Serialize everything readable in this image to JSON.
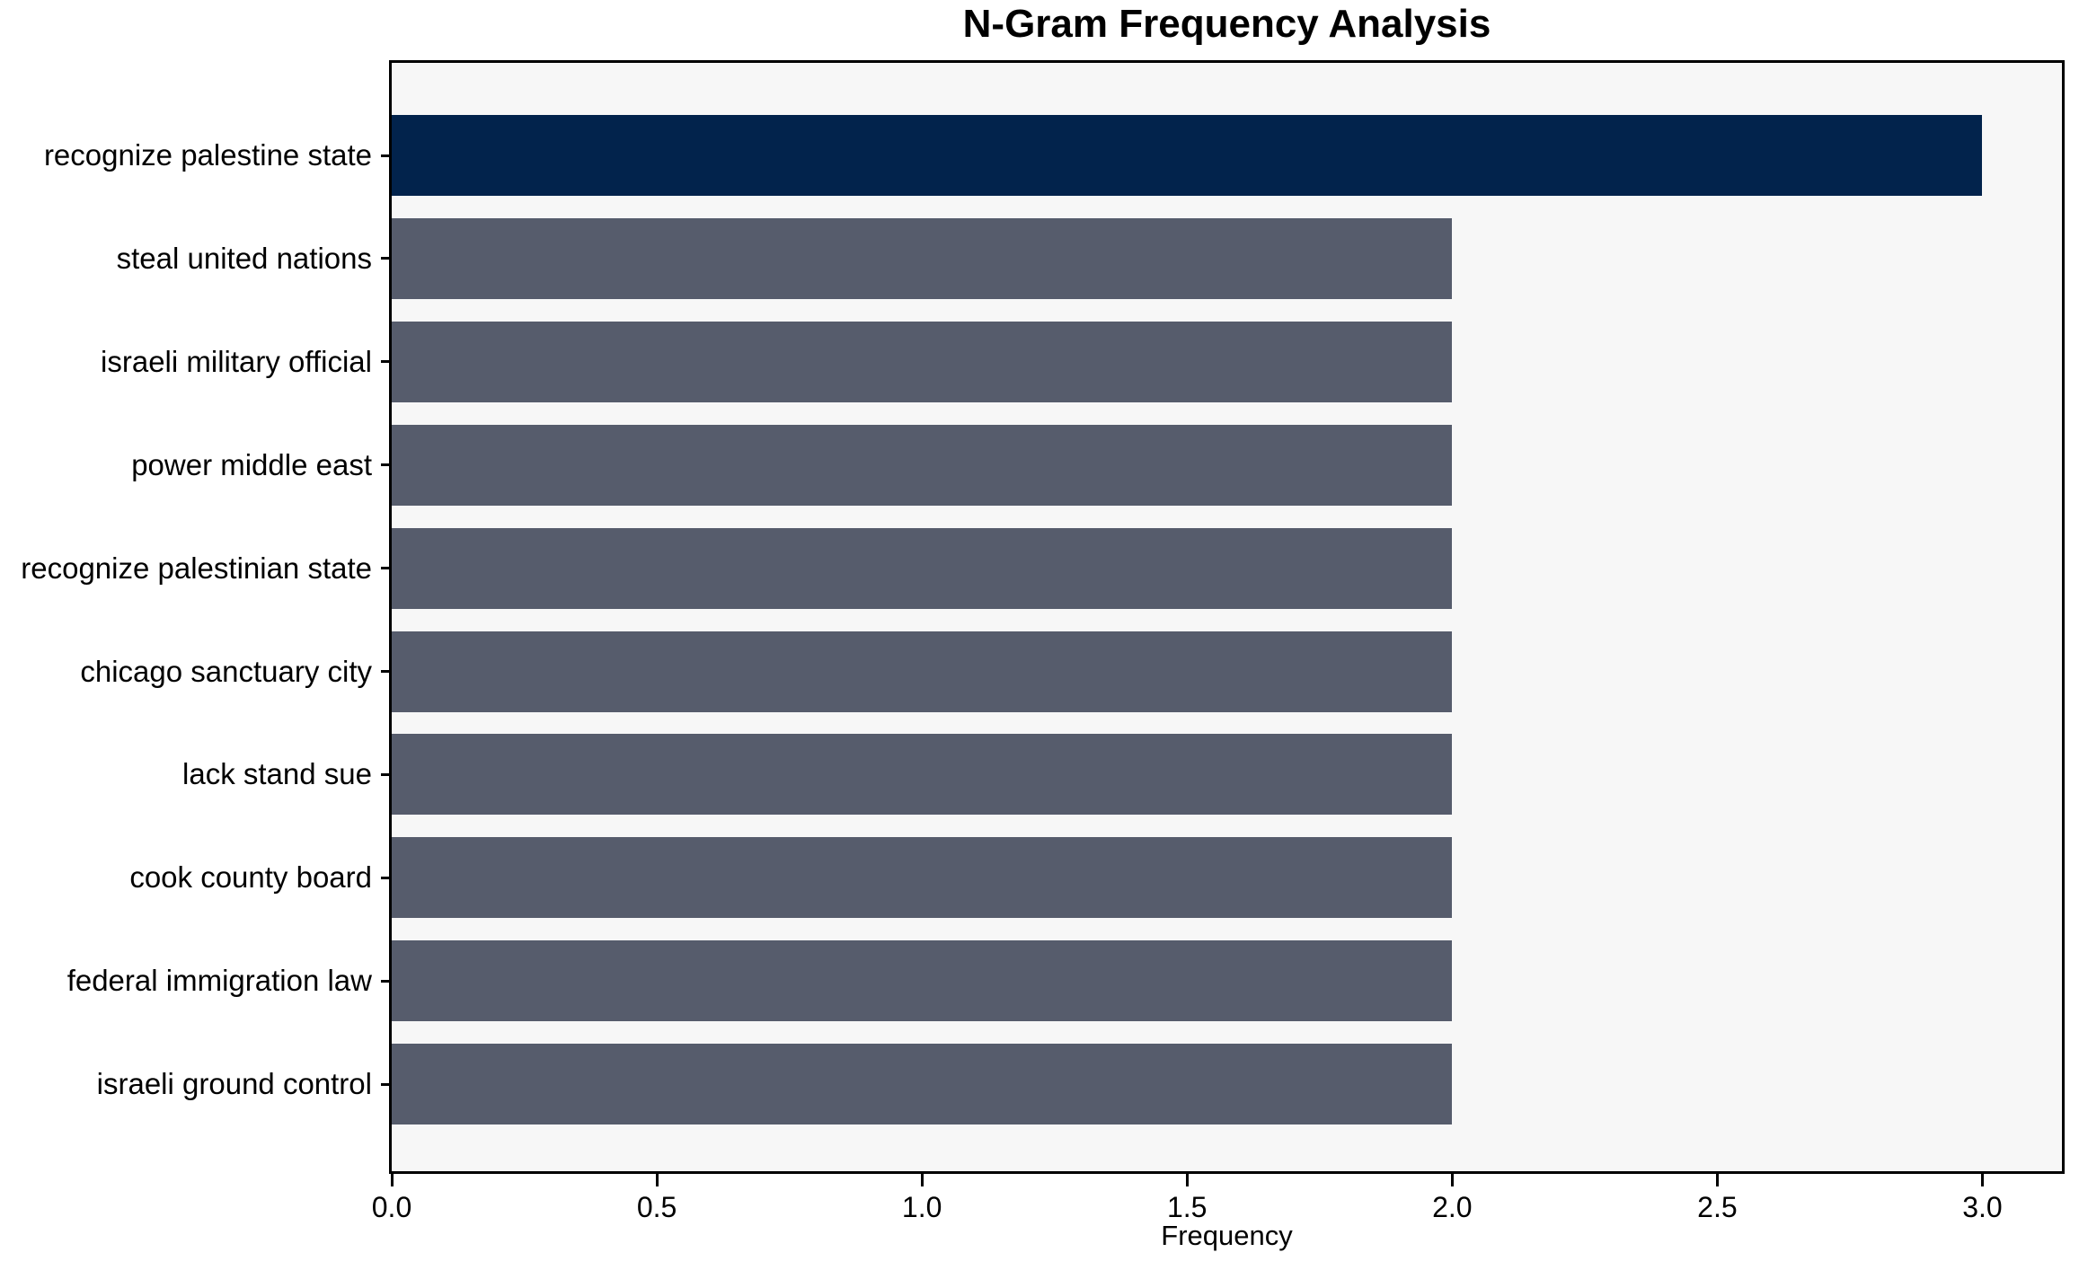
{
  "title": "N-Gram Frequency Analysis",
  "chart_data": {
    "type": "bar",
    "orientation": "horizontal",
    "title": "N-Gram Frequency Analysis",
    "xlabel": "Frequency",
    "ylabel": "",
    "categories": [
      "recognize palestine state",
      "steal united nations",
      "israeli military official",
      "power middle east",
      "recognize palestinian state",
      "chicago sanctuary city",
      "lack stand sue",
      "cook county board",
      "federal immigration law",
      "israeli ground control"
    ],
    "values": [
      3,
      2,
      2,
      2,
      2,
      2,
      2,
      2,
      2,
      2
    ],
    "highlight_index": 0,
    "xlim": [
      0,
      3.15
    ],
    "xticks": [
      0.0,
      0.5,
      1.0,
      1.5,
      2.0,
      2.5,
      3.0
    ],
    "xtick_labels": [
      "0.0",
      "0.5",
      "1.0",
      "1.5",
      "2.0",
      "2.5",
      "3.0"
    ],
    "grid": false,
    "legend": null,
    "colors": {
      "bar": "#565C6C",
      "bar_highlight": "#02234C",
      "plot_background": "#F7F7F7",
      "figure_background": "#FFFFFF",
      "axis": "#000000",
      "text": "#000000"
    }
  }
}
